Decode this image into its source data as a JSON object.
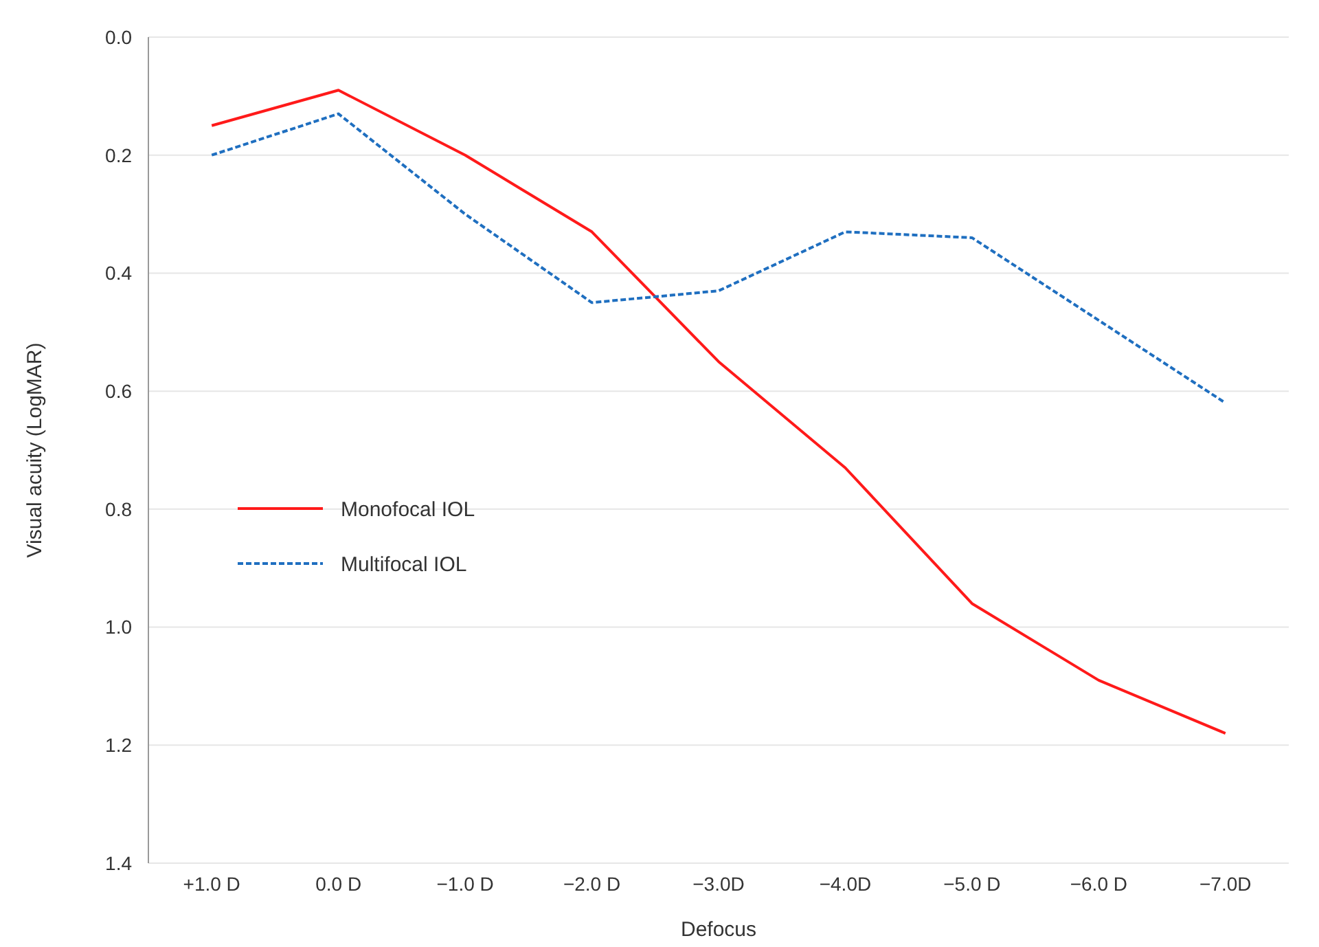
{
  "chart_data": {
    "type": "line",
    "xlabel": "Defocus",
    "ylabel": "Visual acuity (LogMAR)",
    "categories": [
      "+1.0 D",
      "0.0 D",
      "−1.0 D",
      "−2.0 D",
      "−3.0D",
      "−4.0D",
      "−5.0 D",
      "−6.0 D",
      "−7.0D"
    ],
    "series": [
      {
        "name": "Monofocal IOL",
        "color": "#ff1a1a",
        "line_style": "solid",
        "values": [
          0.15,
          0.09,
          0.2,
          0.33,
          0.55,
          0.73,
          0.96,
          1.09,
          1.18
        ]
      },
      {
        "name": "Multifocal IOL",
        "color": "#1f6fc0",
        "line_style": "dashed",
        "values": [
          0.2,
          0.13,
          0.3,
          0.45,
          0.43,
          0.33,
          0.34,
          0.48,
          0.62
        ]
      }
    ],
    "ylim": [
      1.4,
      0
    ],
    "yticks": [
      {
        "value": 0,
        "label": "0.0"
      },
      0.2,
      0.4,
      0.6,
      0.8,
      {
        "value": 1,
        "label": "1.0"
      },
      1.2,
      1.4
    ],
    "grid": "y",
    "legend": "left"
  }
}
